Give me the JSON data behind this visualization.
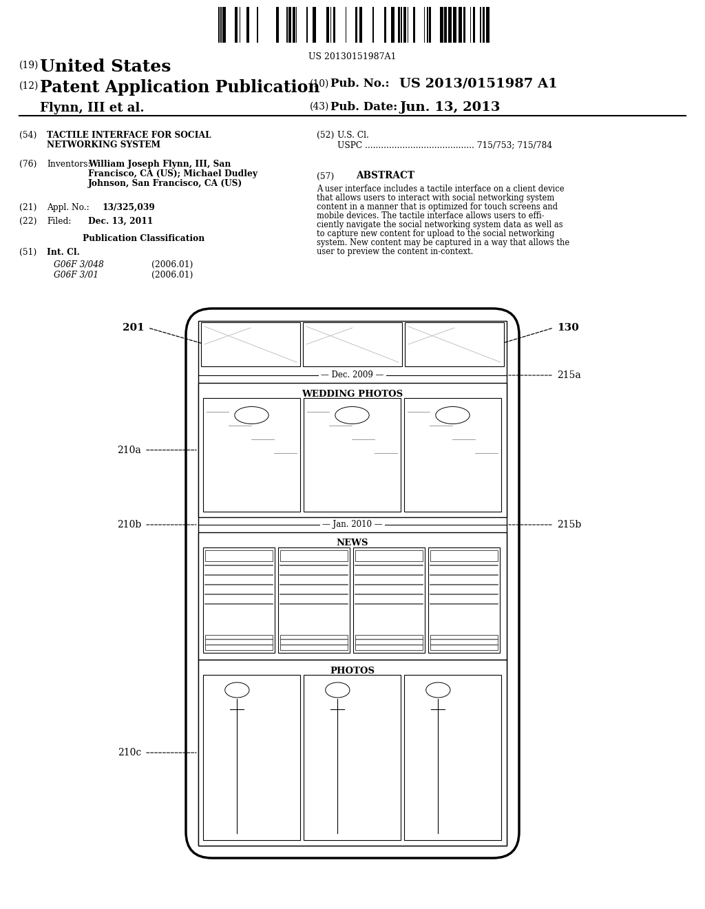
{
  "bg_color": "#ffffff",
  "barcode_text": "US 20130151987A1",
  "title_19": "(19) United States",
  "title_12": "(12) Patent Application Publication",
  "pub_no_label": "(10) Pub. No.:",
  "pub_no_value": "US 2013/0151987 A1",
  "inventor_line": "Flynn, III et al.",
  "pub_date_label": "(43) Pub. Date:",
  "pub_date_value": "Jun. 13, 2013",
  "field_54_label": "(54)",
  "field_54_line1": "TACTILE INTERFACE FOR SOCIAL",
  "field_54_line2": "NETWORKING SYSTEM",
  "field_52_label": "(52)",
  "field_52_title": "U.S. Cl.",
  "field_52_uspc": "USPC ......................................... 715/753; 715/784",
  "field_76_label": "(76)",
  "field_76_title": "Inventors:",
  "field_76_line1": "William Joseph Flynn, III, San",
  "field_76_line2": "Francisco, CA (US); Michael Dudley",
  "field_76_line3": "Johnson, San Francisco, CA (US)",
  "field_57_label": "(57)",
  "field_57_title": "ABSTRACT",
  "abstract_line1": "A user interface includes a tactile interface on a client device",
  "abstract_line2": "that allows users to interact with social networking system",
  "abstract_line3": "content in a manner that is optimized for touch screens and",
  "abstract_line4": "mobile devices. The tactile interface allows users to effi-",
  "abstract_line5": "ciently navigate the social networking system data as well as",
  "abstract_line6": "to capture new content for upload to the social networking",
  "abstract_line7": "system. New content may be captured in a way that allows the",
  "abstract_line8": "user to preview the content in-context.",
  "field_21_label": "(21)",
  "field_21_title": "Appl. No.:",
  "field_21_value": "13/325,039",
  "field_22_label": "(22)",
  "field_22_title": "Filed:",
  "field_22_value": "Dec. 13, 2011",
  "pub_class_title": "Publication Classification",
  "field_51_label": "(51)",
  "field_51_title": "Int. Cl.",
  "field_51_g1": "G06F 3/048",
  "field_51_g1_date": "(2006.01)",
  "field_51_g2": "G06F 3/01",
  "field_51_g2_date": "(2006.01)",
  "label_201": "201",
  "label_130": "130",
  "label_210a": "210a",
  "label_210b": "210b",
  "label_210c": "210c",
  "label_215a": "215a",
  "label_215b": "215b",
  "date_dec2009": "Dec. 2009",
  "date_jan2010": "Jan. 2010",
  "section_wedding": "WEDDING PHOTOS",
  "section_news": "NEWS",
  "section_photos": "PHOTOS"
}
